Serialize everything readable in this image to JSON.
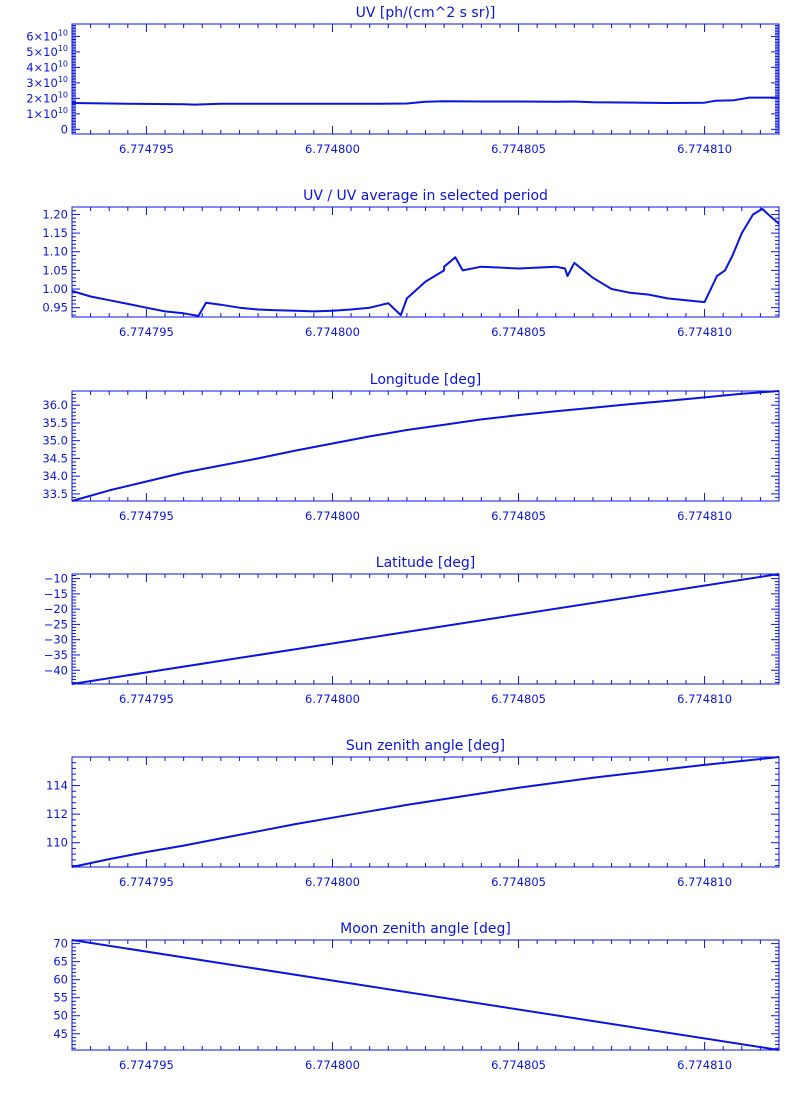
{
  "color": "#0a14e0",
  "chart_data": [
    {
      "type": "line",
      "title": "UV [ph/(cm^2 s sr)]",
      "xlim": [
        6.774793,
        6.774812
      ],
      "xticks": [
        6.774795,
        6.7748,
        6.774805,
        6.77481
      ],
      "xticklabels": [
        "6.774795",
        "6.774800",
        "6.774805",
        "6.774810"
      ],
      "ylim": [
        -3000000000.0,
        68000000000.0
      ],
      "yticks": [
        0,
        10000000000.0,
        20000000000.0,
        30000000000.0,
        40000000000.0,
        50000000000.0,
        60000000000.0
      ],
      "yticklabels": [
        {
          "m": "0",
          "e": ""
        },
        {
          "m": "1×10",
          "e": "10"
        },
        {
          "m": "2×10",
          "e": "10"
        },
        {
          "m": "3×10",
          "e": "10"
        },
        {
          "m": "4×10",
          "e": "10"
        },
        {
          "m": "5×10",
          "e": "10"
        },
        {
          "m": "6×10",
          "e": "10"
        }
      ],
      "x": [
        6.774793,
        6.7747945,
        6.774796,
        6.7747963,
        6.774797,
        6.774799,
        6.774801,
        6.774802,
        6.7748025,
        6.774803,
        6.774804,
        6.774805,
        6.774806,
        6.7748065,
        6.774807,
        6.774809,
        6.77481,
        6.7748103,
        6.7748108,
        6.7748112,
        6.774812
      ],
      "y": [
        17000000000.0,
        16500000000.0,
        16200000000.0,
        16000000000.0,
        16500000000.0,
        16500000000.0,
        16500000000.0,
        16700000000.0,
        17800000000.0,
        18200000000.0,
        18000000000.0,
        18000000000.0,
        17800000000.0,
        18000000000.0,
        17500000000.0,
        17000000000.0,
        17200000000.0,
        18500000000.0,
        18800000000.0,
        20500000000.0,
        20500000000.0
      ]
    },
    {
      "type": "line",
      "title": "UV / UV average in selected period",
      "xlim": [
        6.774793,
        6.774812
      ],
      "xticks": [
        6.774795,
        6.7748,
        6.774805,
        6.77481
      ],
      "xticklabels": [
        "6.774795",
        "6.774800",
        "6.774805",
        "6.774810"
      ],
      "ylim": [
        0.925,
        1.22
      ],
      "yticks": [
        0.95,
        1.0,
        1.05,
        1.1,
        1.15,
        1.2
      ],
      "yticklabels": [
        "0.95",
        "1.00",
        "1.05",
        "1.10",
        "1.15",
        "1.20"
      ],
      "x": [
        6.774793,
        6.7747935,
        6.774794,
        6.7747945,
        6.774795,
        6.7747955,
        6.774796,
        6.7747964,
        6.7747966,
        6.774797,
        6.7747975,
        6.774798,
        6.7747985,
        6.774799,
        6.7747995,
        6.7748,
        6.7748005,
        6.774801,
        6.7748015,
        6.774801835,
        6.774802,
        6.7748025,
        6.774803,
        6.774803,
        6.7748033,
        6.7748035,
        6.774804,
        6.774805,
        6.774806,
        6.77480625,
        6.774806315,
        6.7748065,
        6.774807,
        6.7748075,
        6.774808,
        6.7748085,
        6.774809,
        6.7748095,
        6.77481,
        6.774810335,
        6.77481055,
        6.77481075,
        6.774811,
        6.7748113,
        6.77481155,
        6.774811765,
        6.774812
      ],
      "y": [
        0.995,
        0.98,
        0.97,
        0.96,
        0.95,
        0.94,
        0.935,
        0.928,
        0.963,
        0.958,
        0.95,
        0.945,
        0.943,
        0.942,
        0.94,
        0.942,
        0.945,
        0.95,
        0.962,
        0.93,
        0.975,
        1.02,
        1.05,
        1.06,
        1.085,
        1.05,
        1.06,
        1.055,
        1.06,
        1.055,
        1.035,
        1.07,
        1.03,
        1.0,
        0.99,
        0.985,
        0.975,
        0.97,
        0.965,
        1.035,
        1.05,
        1.09,
        1.15,
        1.2,
        1.215,
        1.195,
        1.175
      ]
    },
    {
      "type": "line",
      "title": "Longitude [deg]",
      "xlim": [
        6.774793,
        6.774812
      ],
      "xticks": [
        6.774795,
        6.7748,
        6.774805,
        6.77481
      ],
      "xticklabels": [
        "6.774795",
        "6.774800",
        "6.774805",
        "6.774810"
      ],
      "ylim": [
        33.3,
        36.4
      ],
      "yticks": [
        33.5,
        34.0,
        34.5,
        35.0,
        35.5,
        36.0
      ],
      "yticklabels": [
        "33.5",
        "34.0",
        "34.5",
        "35.0",
        "35.5",
        "36.0"
      ],
      "x": [
        6.774793,
        6.774794,
        6.774795,
        6.774796,
        6.774797,
        6.774798,
        6.774799,
        6.7748,
        6.774801,
        6.774802,
        6.774803,
        6.774804,
        6.774805,
        6.774806,
        6.774807,
        6.774808,
        6.774809,
        6.77481,
        6.774811,
        6.774812
      ],
      "y": [
        33.3,
        33.6,
        33.85,
        34.1,
        34.3,
        34.5,
        34.72,
        34.92,
        35.12,
        35.3,
        35.45,
        35.6,
        35.72,
        35.83,
        35.93,
        36.03,
        36.12,
        36.22,
        36.32,
        36.4
      ]
    },
    {
      "type": "line",
      "title": "Latitude [deg]",
      "xlim": [
        6.774793,
        6.774812
      ],
      "xticks": [
        6.774795,
        6.7748,
        6.774805,
        6.77481
      ],
      "xticklabels": [
        "6.774795",
        "6.774800",
        "6.774805",
        "6.774810"
      ],
      "ylim": [
        -44.5,
        -8.5
      ],
      "yticks": [
        -40,
        -35,
        -30,
        -25,
        -20,
        -15,
        -10
      ],
      "yticklabels": [
        "−40",
        "−35",
        "−30",
        "−25",
        "−20",
        "−15",
        "−10"
      ],
      "x": [
        6.774793,
        6.774812
      ],
      "y": [
        -44.5,
        -8.5
      ]
    },
    {
      "type": "line",
      "title": "Sun zenith angle [deg]",
      "xlim": [
        6.774793,
        6.774812
      ],
      "xticks": [
        6.774795,
        6.7748,
        6.774805,
        6.77481
      ],
      "xticklabels": [
        "6.774795",
        "6.774800",
        "6.774805",
        "6.774810"
      ],
      "ylim": [
        108.3,
        116.0
      ],
      "yticks": [
        110,
        112,
        114
      ],
      "yticklabels": [
        "110",
        "112",
        "114"
      ],
      "x": [
        6.774793,
        6.774794,
        6.774795,
        6.774796,
        6.774797,
        6.774798,
        6.774799,
        6.7748,
        6.774801,
        6.774802,
        6.774803,
        6.774804,
        6.774805,
        6.774806,
        6.774807,
        6.774808,
        6.774809,
        6.77481,
        6.774811,
        6.774812
      ],
      "y": [
        108.3,
        108.85,
        109.35,
        109.8,
        110.3,
        110.8,
        111.3,
        111.75,
        112.2,
        112.65,
        113.05,
        113.45,
        113.85,
        114.2,
        114.55,
        114.85,
        115.15,
        115.45,
        115.72,
        116.0
      ]
    },
    {
      "type": "line",
      "title": "Moon zenith angle [deg]",
      "xlim": [
        6.774793,
        6.774812
      ],
      "xticks": [
        6.774795,
        6.7748,
        6.774805,
        6.77481
      ],
      "xticklabels": [
        "6.774795",
        "6.774800",
        "6.774805",
        "6.774810"
      ],
      "ylim": [
        40.5,
        71.0
      ],
      "yticks": [
        45,
        50,
        55,
        60,
        65,
        70
      ],
      "yticklabels": [
        "45",
        "50",
        "55",
        "60",
        "65",
        "70"
      ],
      "x": [
        6.774793,
        6.774812
      ],
      "y": [
        71.0,
        40.5
      ]
    }
  ]
}
